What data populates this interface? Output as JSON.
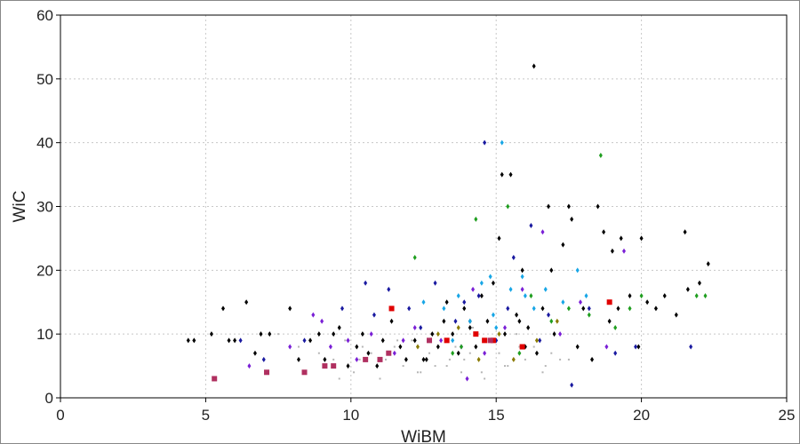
{
  "chart_data": {
    "type": "scatter",
    "title": "",
    "xlabel": "WiBM",
    "ylabel": "WiC",
    "xlim": [
      0,
      25
    ],
    "ylim": [
      0,
      60
    ],
    "xticks": [
      "0",
      "5",
      "10",
      "15",
      "20",
      "25"
    ],
    "yticks": [
      "0",
      "10",
      "20",
      "30",
      "40",
      "50",
      "60"
    ],
    "grid": true,
    "legend": "none",
    "colors": {
      "black": "#000000",
      "navy": "#1a1aa0",
      "purple": "#7a1fd6",
      "cyan": "#17a6e6",
      "green": "#1f9e1f",
      "red": "#e00000",
      "maroon": "#b03060",
      "olive": "#8a7a00",
      "gray": "#b5b5b5"
    },
    "series": [
      {
        "color": "gray",
        "marker": "dot",
        "x": [
          7.5,
          8.2,
          8.9,
          9.4,
          9.8,
          10.1,
          10.4,
          10.7,
          11.0,
          11.2,
          11.5,
          11.8,
          12.1,
          12.4,
          12.7,
          13.0,
          13.3,
          13.6,
          13.9,
          14.2,
          14.5,
          14.8,
          15.1,
          15.4,
          15.7,
          16.0,
          16.3,
          16.6,
          16.9,
          17.2,
          9.6,
          10.9,
          12.3,
          13.4,
          14.6,
          15.8,
          16.7,
          17.5,
          11.6,
          13.8,
          15.3,
          8.6,
          10.3,
          12.9,
          14.1
        ],
        "y": [
          10,
          8,
          7,
          6,
          9,
          4,
          8,
          7,
          3,
          6,
          8,
          5,
          9,
          4,
          7,
          10,
          5,
          8,
          6,
          11,
          4,
          9,
          7,
          5,
          10,
          6,
          8,
          4,
          7,
          6,
          3,
          5,
          4,
          6,
          3,
          8,
          5,
          6,
          9,
          4,
          5,
          9,
          6,
          5,
          7
        ]
      },
      {
        "color": "black",
        "marker": "diamond",
        "x": [
          4.4,
          4.6,
          5.2,
          5.6,
          5.8,
          6.0,
          6.4,
          6.7,
          6.9,
          7.2,
          7.9,
          8.2,
          8.6,
          8.9,
          9.1,
          9.4,
          9.6,
          9.9,
          10.2,
          10.4,
          10.6,
          10.9,
          11.1,
          11.4,
          11.7,
          11.9,
          12.2,
          12.5,
          12.8,
          13.0,
          13.2,
          13.5,
          13.7,
          13.9,
          14.1,
          14.3,
          14.5,
          14.7,
          14.9,
          15.1,
          15.3,
          15.5,
          15.7,
          15.9,
          16.1,
          16.3,
          16.4,
          16.6,
          16.8,
          17.0,
          17.3,
          17.5,
          17.8,
          18.0,
          18.3,
          18.5,
          18.7,
          19.0,
          19.3,
          19.6,
          19.9,
          20.2,
          20.5,
          20.8,
          21.2,
          21.6,
          22.0,
          22.3,
          14.1,
          15.2,
          16.0,
          17.6,
          18.9,
          20.0,
          21.5,
          13.3,
          12.6,
          15.8,
          16.9,
          19.2
        ],
        "y": [
          9,
          9,
          10,
          14,
          9,
          9,
          15,
          7,
          10,
          10,
          14,
          6,
          9,
          10,
          6,
          10,
          11,
          5,
          8,
          10,
          7,
          5,
          9,
          12,
          8,
          6,
          9,
          6,
          10,
          8,
          12,
          10,
          7,
          14,
          11,
          8,
          16,
          12,
          18,
          25,
          10,
          35,
          13,
          20,
          11,
          52,
          7,
          14,
          30,
          10,
          24,
          30,
          8,
          14,
          6,
          30,
          26,
          23,
          25,
          16,
          8,
          15,
          14,
          16,
          13,
          17,
          18,
          21,
          12,
          35,
          8,
          28,
          12,
          25,
          26,
          15,
          6,
          12,
          20,
          14
        ]
      },
      {
        "color": "navy",
        "marker": "diamond",
        "x": [
          6.2,
          7.0,
          8.4,
          9.7,
          10.5,
          11.3,
          12.0,
          12.9,
          13.6,
          14.4,
          14.6,
          15.0,
          15.6,
          16.2,
          16.8,
          17.6,
          18.2,
          19.1,
          19.8,
          21.7,
          13.9,
          12.4,
          10.8,
          15.4,
          16.5
        ],
        "y": [
          9,
          6,
          9,
          14,
          18,
          17,
          14,
          18,
          12,
          16,
          40,
          9,
          22,
          27,
          13,
          2,
          14,
          7,
          8,
          8,
          15,
          11,
          13,
          14,
          9
        ]
      },
      {
        "color": "purple",
        "marker": "diamond",
        "x": [
          6.5,
          7.9,
          8.7,
          9.3,
          9.9,
          10.7,
          11.5,
          12.2,
          13.1,
          13.8,
          14.0,
          14.6,
          15.3,
          15.9,
          16.6,
          17.2,
          17.9,
          18.8,
          19.4,
          10.2,
          11.8,
          9.0,
          14.2
        ],
        "y": [
          5,
          8,
          13,
          8,
          9,
          10,
          7,
          11,
          9,
          8,
          3,
          7,
          11,
          17,
          26,
          10,
          15,
          8,
          23,
          6,
          9,
          12,
          17
        ]
      },
      {
        "color": "cyan",
        "marker": "diamond",
        "x": [
          12.5,
          13.2,
          13.7,
          14.1,
          14.5,
          14.9,
          15.2,
          15.5,
          15.9,
          16.3,
          16.7,
          17.3,
          17.8,
          18.1,
          15.0,
          13.5,
          14.8,
          16.0
        ],
        "y": [
          15,
          14,
          16,
          12,
          18,
          13,
          40,
          17,
          19,
          14,
          17,
          15,
          20,
          16,
          11,
          9,
          19,
          16
        ]
      },
      {
        "color": "green",
        "marker": "diamond",
        "x": [
          12.2,
          13.8,
          14.3,
          15.4,
          16.2,
          16.9,
          17.5,
          18.2,
          18.6,
          19.1,
          19.6,
          20.0,
          21.9,
          22.2,
          13.5,
          15.8
        ],
        "y": [
          22,
          8,
          28,
          30,
          16,
          12,
          14,
          13,
          38,
          11,
          14,
          16,
          16,
          16,
          7,
          7
        ]
      },
      {
        "color": "red",
        "marker": "square",
        "x": [
          11.4,
          13.3,
          14.3,
          14.6,
          14.9,
          15.9,
          18.9
        ],
        "y": [
          14,
          9,
          10,
          9,
          9,
          8,
          15
        ]
      },
      {
        "color": "maroon",
        "marker": "square",
        "x": [
          5.3,
          7.1,
          8.4,
          9.1,
          9.4,
          10.5,
          11.0,
          11.3,
          12.7,
          14.8
        ],
        "y": [
          3,
          4,
          4,
          5,
          5,
          6,
          6,
          7,
          9,
          9
        ]
      },
      {
        "color": "olive",
        "marker": "diamond",
        "x": [
          12.3,
          13.0,
          13.7,
          14.4,
          15.1,
          15.6,
          16.4,
          17.1
        ],
        "y": [
          8,
          10,
          11,
          6,
          10,
          6,
          9,
          12
        ]
      }
    ]
  }
}
